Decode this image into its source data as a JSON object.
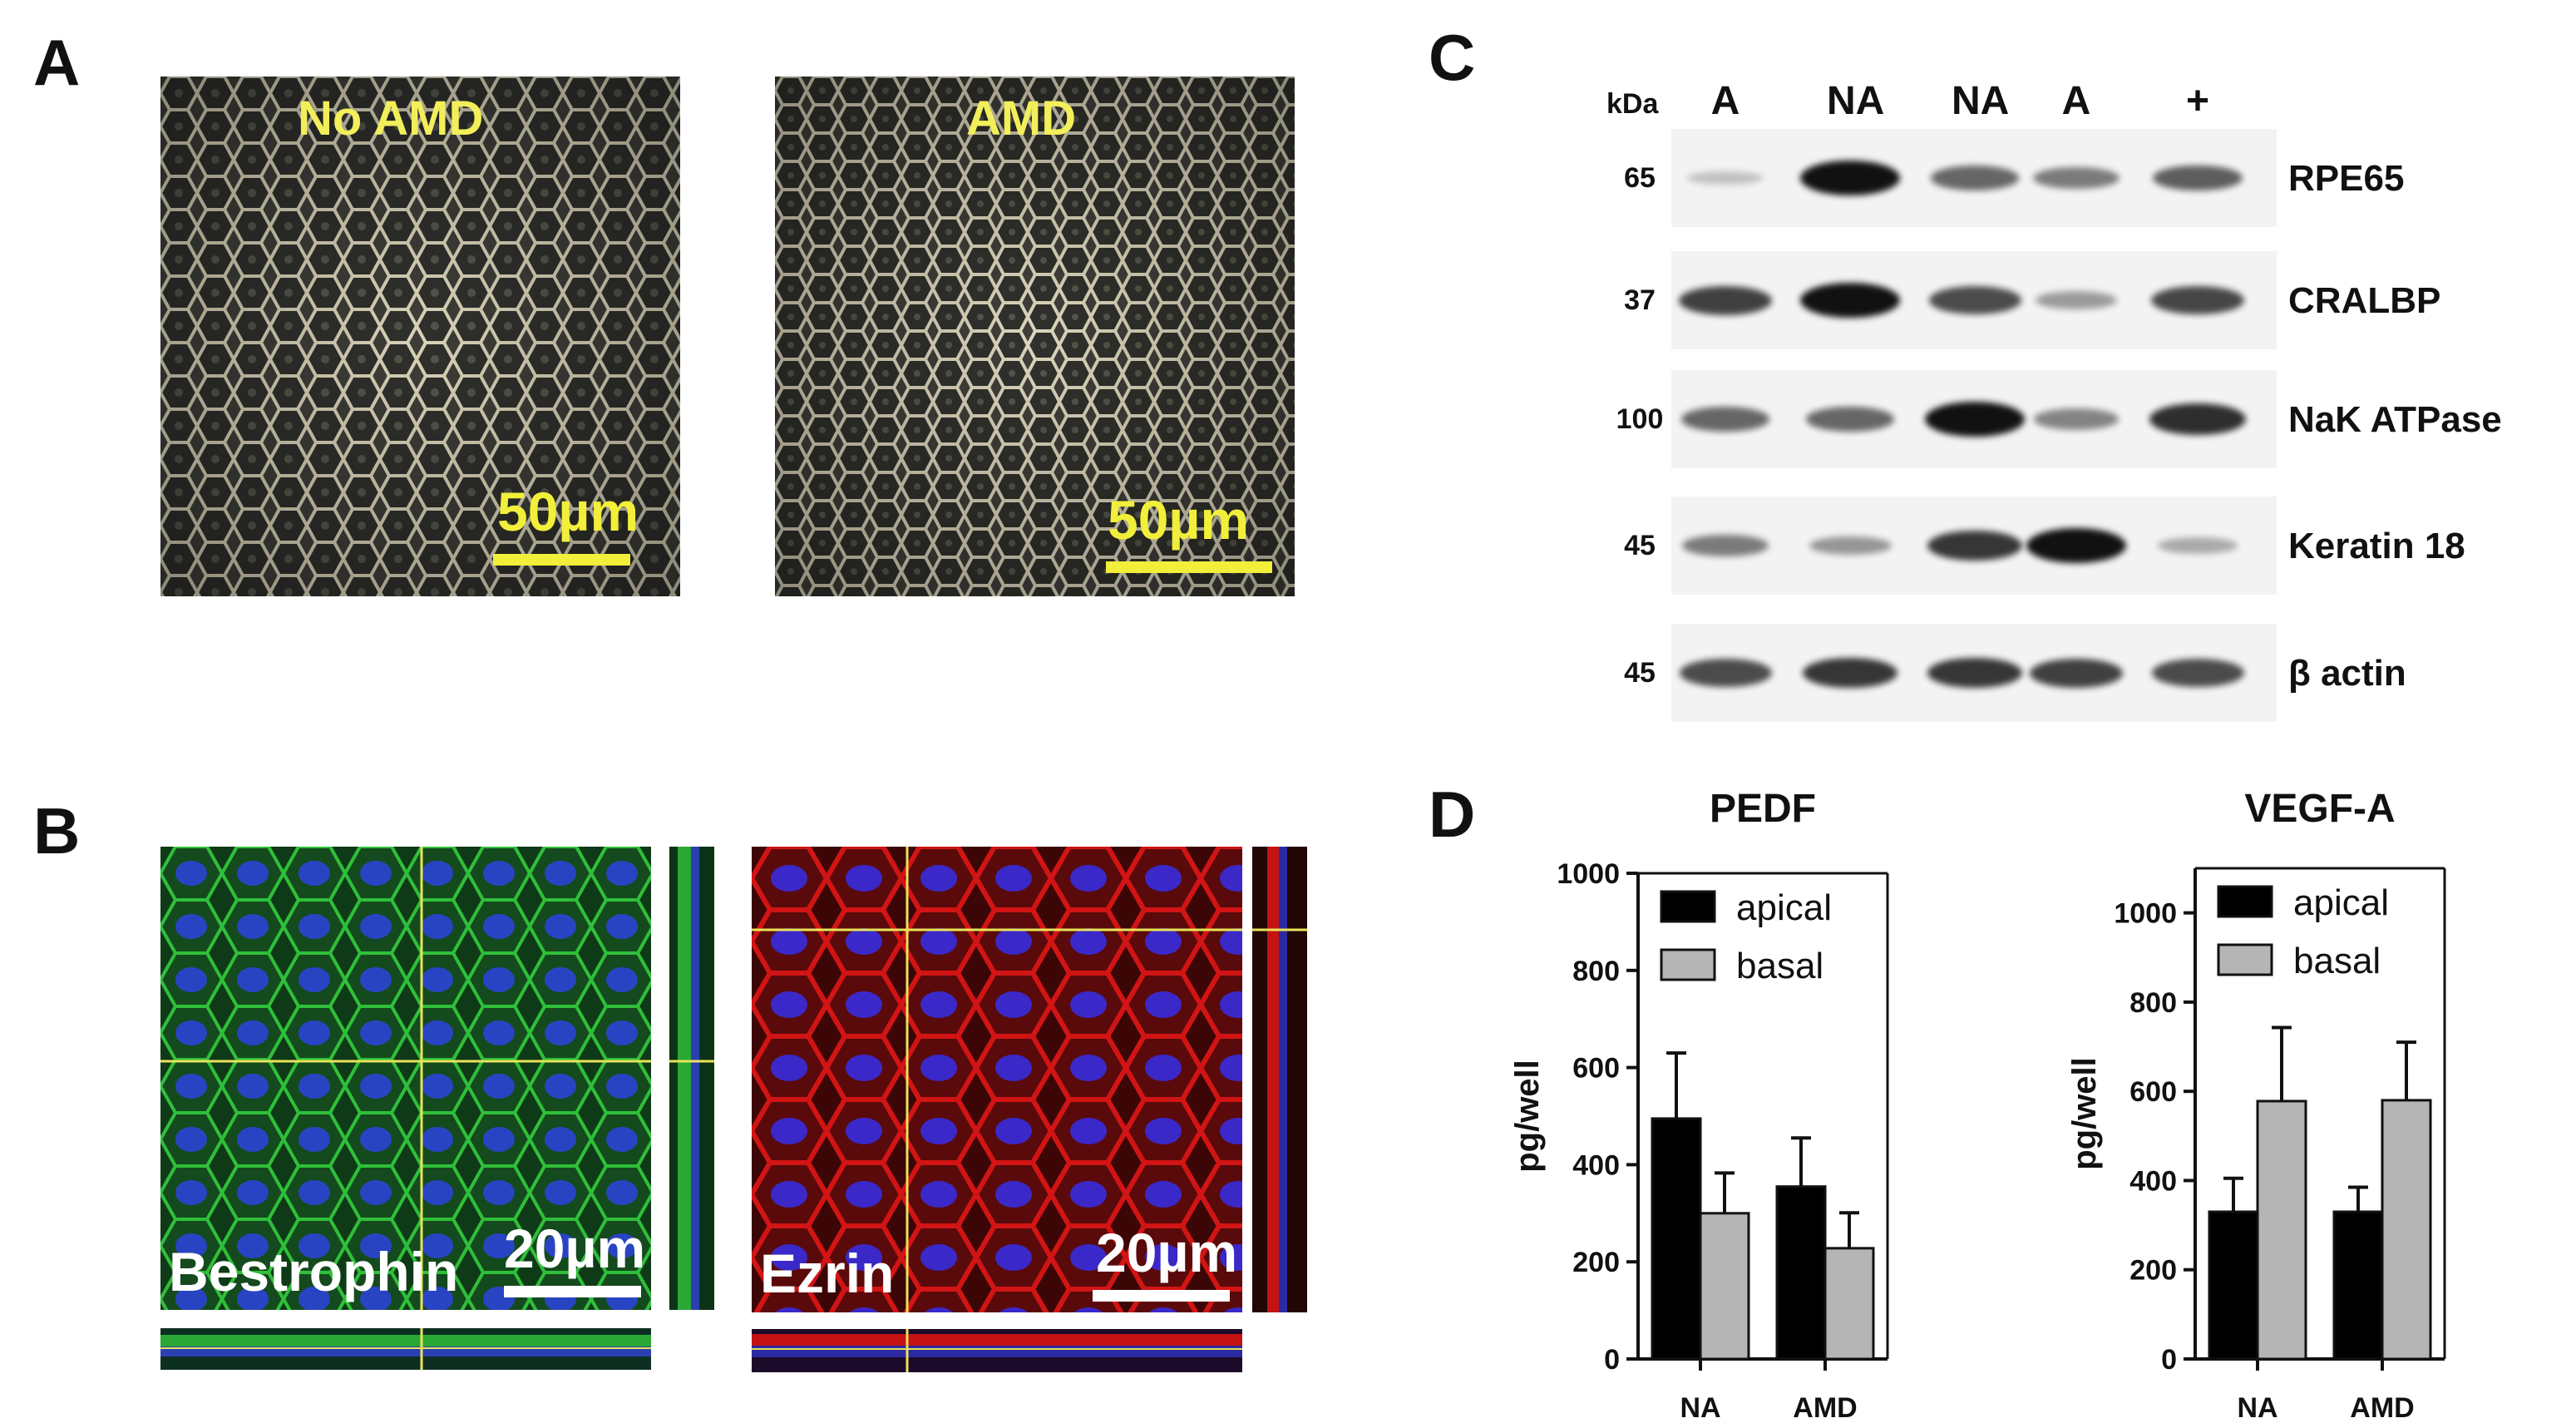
{
  "panels": {
    "a": "A",
    "b": "B",
    "c": "C",
    "d": "D"
  },
  "panel_a": {
    "left_label": "No AMD",
    "right_label": "AMD",
    "scale_left": "50µm",
    "scale_right": "50µm"
  },
  "panel_b": {
    "left_stain": "Bestrophin",
    "right_stain": "Ezrin",
    "scale_left": "20µm",
    "scale_right": "20µm"
  },
  "western_blot": {
    "kda_header": "kDa",
    "lanes": [
      "A",
      "NA",
      "NA",
      "A",
      "+"
    ],
    "rows": [
      {
        "kda": "65",
        "protein": "RPE65",
        "intensity": [
          0.08,
          1.0,
          0.55,
          0.45,
          0.6
        ]
      },
      {
        "kda": "37",
        "protein": "CRALBP",
        "intensity": [
          0.75,
          1.0,
          0.7,
          0.28,
          0.72
        ]
      },
      {
        "kda": "100",
        "protein": "NaK ATPase",
        "intensity": [
          0.55,
          0.55,
          1.0,
          0.4,
          0.85
        ]
      },
      {
        "kda": "45",
        "protein": "Keratin 18",
        "intensity": [
          0.45,
          0.3,
          0.8,
          1.0,
          0.2
        ]
      },
      {
        "kda": "45",
        "protein": "β actin",
        "intensity": [
          0.7,
          0.8,
          0.8,
          0.75,
          0.7
        ]
      }
    ]
  },
  "chart_data": [
    {
      "type": "bar",
      "title": "PEDF",
      "ylabel": "pg/well",
      "categories": [
        "NA",
        "AMD"
      ],
      "ylim": [
        0,
        1000
      ],
      "yticks": [
        0,
        200,
        400,
        600,
        800,
        1000
      ],
      "legend": "top-left",
      "series": [
        {
          "name": "apical",
          "color": "#000000",
          "values": [
            495,
            355
          ],
          "errors": [
            135,
            100
          ]
        },
        {
          "name": "basal",
          "color": "#b5b5b5",
          "values": [
            300,
            228
          ],
          "errors": [
            83,
            73
          ]
        }
      ]
    },
    {
      "type": "bar",
      "title": "VEGF-A",
      "ylabel": "pg/well",
      "categories": [
        "NA",
        "AMD"
      ],
      "ylim": [
        0,
        1100
      ],
      "yticks": [
        0,
        200,
        400,
        600,
        800,
        1000
      ],
      "legend": "top-left",
      "series": [
        {
          "name": "apical",
          "color": "#000000",
          "values": [
            330,
            330
          ],
          "errors": [
            75,
            55
          ]
        },
        {
          "name": "basal",
          "color": "#b5b5b5",
          "values": [
            578,
            580
          ],
          "errors": [
            165,
            130
          ]
        }
      ]
    }
  ]
}
